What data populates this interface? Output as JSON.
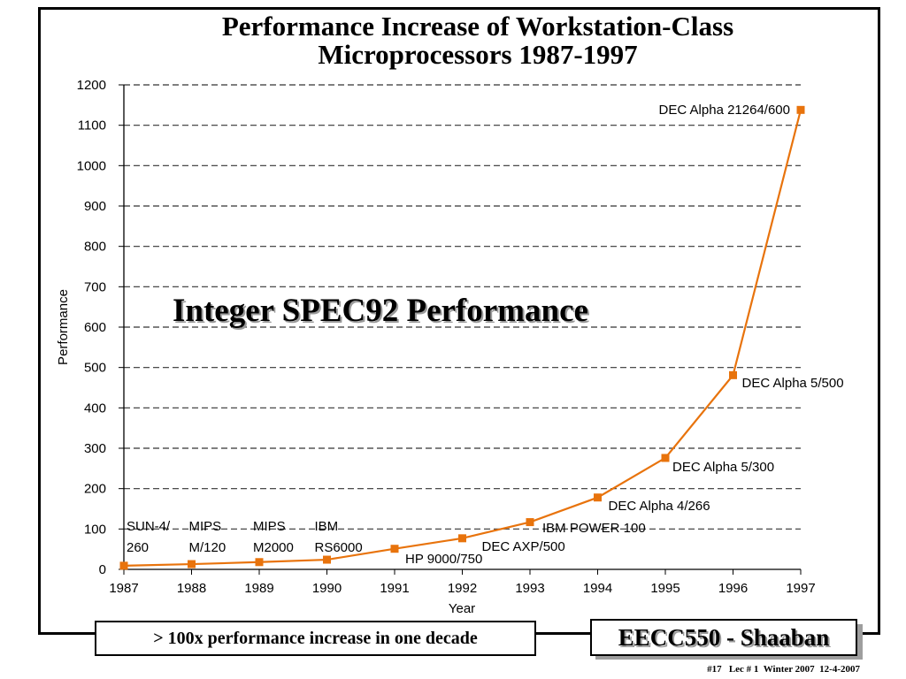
{
  "slide": {
    "title_line1": "Performance Increase of Workstation-Class",
    "title_line2": "Microprocessors 1987-1997",
    "overlay_label": "Integer SPEC92 Performance",
    "bottom_box": "> 100x performance increase in one decade",
    "course_box": "EECC550 - Shaaban",
    "footer": "#17   Lec # 1  Winter 2007  12-4-2007"
  },
  "chart_data": {
    "type": "line",
    "title": "",
    "xlabel": "Year",
    "ylabel": "Performance",
    "x": [
      1987,
      1988,
      1989,
      1990,
      1991,
      1992,
      1993,
      1994,
      1995,
      1996,
      1997
    ],
    "xlim": [
      1987,
      1997
    ],
    "ylim": [
      0,
      1200
    ],
    "y_ticks": [
      0,
      100,
      200,
      300,
      400,
      500,
      600,
      700,
      800,
      900,
      1000,
      1100,
      1200
    ],
    "grid": "horizontal dashed",
    "series": [
      {
        "color": "#e8730c",
        "marker": "square",
        "values": [
          9,
          13,
          18,
          24,
          51,
          77,
          117,
          178,
          276,
          481,
          1138
        ]
      }
    ],
    "annotations": [
      {
        "x": 1987,
        "line1": "SUN-4/",
        "line2": "260"
      },
      {
        "x": 1988,
        "line1": "MIPS",
        "line2": "M/120"
      },
      {
        "x": 1989,
        "line1": "MIPS",
        "line2": "M2000"
      },
      {
        "x": 1990,
        "line1": "IBM",
        "line2": "RS6000"
      },
      {
        "x": 1991,
        "line1": "HP 9000/750"
      },
      {
        "x": 1992,
        "line1": "DEC AXP/500"
      },
      {
        "x": 1993,
        "line1": "IBM POWER 100"
      },
      {
        "x": 1994,
        "line1": "DEC Alpha 4/266"
      },
      {
        "x": 1995,
        "line1": "DEC Alpha 5/300"
      },
      {
        "x": 1996,
        "line1": "DEC Alpha 5/500"
      },
      {
        "x": 1997,
        "line1": "DEC Alpha 21264/600"
      }
    ]
  }
}
